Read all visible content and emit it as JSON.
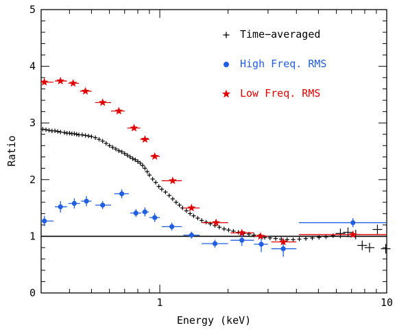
{
  "chart_data": {
    "type": "scatter",
    "xlabel": "Energy (keV)",
    "ylabel": "Ratio",
    "xscale": "log",
    "xlim": [
      0.3,
      10
    ],
    "ylim": [
      0,
      5
    ],
    "xtick_labels": [
      {
        "v": 1,
        "t": "1"
      },
      {
        "v": 10,
        "t": "10"
      }
    ],
    "ytick_labels": [
      {
        "v": 0,
        "t": "0"
      },
      {
        "v": 1,
        "t": "1"
      },
      {
        "v": 2,
        "t": "2"
      },
      {
        "v": 3,
        "t": "3"
      },
      {
        "v": 4,
        "t": "4"
      },
      {
        "v": 5,
        "t": "5"
      }
    ],
    "reference_line": 1.0,
    "legend_position": "top-right",
    "series": [
      {
        "name": "Time−averaged",
        "marker": "plus",
        "color": "#000000",
        "points": [
          [
            0.305,
            2.89
          ],
          [
            0.315,
            2.88
          ],
          [
            0.325,
            2.87
          ],
          [
            0.335,
            2.86
          ],
          [
            0.345,
            2.86
          ],
          [
            0.355,
            2.85
          ],
          [
            0.365,
            2.84
          ],
          [
            0.38,
            2.83
          ],
          [
            0.39,
            2.82
          ],
          [
            0.4,
            2.82
          ],
          [
            0.41,
            2.81
          ],
          [
            0.42,
            2.81
          ],
          [
            0.43,
            2.8
          ],
          [
            0.44,
            2.79
          ],
          [
            0.455,
            2.79
          ],
          [
            0.47,
            2.78
          ],
          [
            0.485,
            2.77
          ],
          [
            0.5,
            2.76
          ],
          [
            0.52,
            2.74
          ],
          [
            0.54,
            2.71
          ],
          [
            0.56,
            2.68
          ],
          [
            0.58,
            2.64
          ],
          [
            0.6,
            2.6
          ],
          [
            0.62,
            2.57
          ],
          [
            0.64,
            2.54
          ],
          [
            0.66,
            2.51
          ],
          [
            0.68,
            2.49
          ],
          [
            0.7,
            2.46
          ],
          [
            0.72,
            2.43
          ],
          [
            0.74,
            2.4
          ],
          [
            0.76,
            2.37
          ],
          [
            0.78,
            2.35
          ],
          [
            0.8,
            2.32
          ],
          [
            0.82,
            2.29
          ],
          [
            0.84,
            2.25
          ],
          [
            0.86,
            2.2
          ],
          [
            0.88,
            2.14
          ],
          [
            0.9,
            2.08
          ],
          [
            0.93,
            2.01
          ],
          [
            0.96,
            1.95
          ],
          [
            0.99,
            1.88
          ],
          [
            1.02,
            1.83
          ],
          [
            1.06,
            1.78
          ],
          [
            1.1,
            1.72
          ],
          [
            1.14,
            1.66
          ],
          [
            1.18,
            1.6
          ],
          [
            1.22,
            1.55
          ],
          [
            1.26,
            1.5
          ],
          [
            1.31,
            1.45
          ],
          [
            1.36,
            1.4
          ],
          [
            1.41,
            1.36
          ],
          [
            1.47,
            1.32
          ],
          [
            1.53,
            1.28
          ],
          [
            1.6,
            1.25
          ],
          [
            1.67,
            1.22
          ],
          [
            1.75,
            1.19
          ],
          [
            1.83,
            1.16
          ],
          [
            1.92,
            1.13
          ],
          [
            2.01,
            1.11
          ],
          [
            2.11,
            1.09
          ],
          [
            2.22,
            1.07
          ],
          [
            2.34,
            1.05
          ],
          [
            2.47,
            1.04
          ],
          [
            2.6,
            1.02
          ],
          [
            2.74,
            1.0
          ],
          [
            2.9,
            0.98
          ],
          [
            3.06,
            0.97
          ],
          [
            3.24,
            0.96
          ],
          [
            3.43,
            0.95
          ],
          [
            3.64,
            0.94
          ],
          [
            3.87,
            0.94
          ],
          [
            4.12,
            0.95
          ],
          [
            4.4,
            0.96
          ],
          [
            4.7,
            0.97
          ],
          [
            5.03,
            0.98
          ],
          [
            5.4,
            0.99
          ],
          [
            5.8,
            1.01
          ],
          [
            6.25,
            1.05
          ],
          [
            6.75,
            1.07
          ],
          [
            7.3,
            1.03
          ],
          [
            7.8,
            0.84
          ],
          [
            8.4,
            0.8
          ],
          [
            9.1,
            1.12
          ],
          [
            9.9,
            0.78
          ]
        ]
      },
      {
        "name": "High Freq. RMS",
        "marker": "circle",
        "color": "#1f5fe0",
        "points": [
          {
            "x": 0.31,
            "y": 1.27,
            "xlo": 0.3,
            "xhi": 0.34,
            "yerr": 0.09
          },
          {
            "x": 0.365,
            "y": 1.52,
            "xlo": 0.345,
            "xhi": 0.39,
            "yerr": 0.1
          },
          {
            "x": 0.42,
            "y": 1.58,
            "xlo": 0.395,
            "xhi": 0.445,
            "yerr": 0.09
          },
          {
            "x": 0.475,
            "y": 1.62,
            "xlo": 0.45,
            "xhi": 0.5,
            "yerr": 0.09
          },
          {
            "x": 0.56,
            "y": 1.55,
            "xlo": 0.52,
            "xhi": 0.61,
            "yerr": 0.07
          },
          {
            "x": 0.68,
            "y": 1.75,
            "xlo": 0.63,
            "xhi": 0.73,
            "yerr": 0.08
          },
          {
            "x": 0.785,
            "y": 1.41,
            "xlo": 0.74,
            "xhi": 0.83,
            "yerr": 0.07
          },
          {
            "x": 0.86,
            "y": 1.43,
            "xlo": 0.835,
            "xhi": 0.895,
            "yerr": 0.08
          },
          {
            "x": 0.95,
            "y": 1.33,
            "xlo": 0.9,
            "xhi": 1.0,
            "yerr": 0.08
          },
          {
            "x": 1.13,
            "y": 1.17,
            "xlo": 1.02,
            "xhi": 1.25,
            "yerr": 0.07
          },
          {
            "x": 1.38,
            "y": 1.02,
            "xlo": 1.27,
            "xhi": 1.5,
            "yerr": 0.06
          },
          {
            "x": 1.75,
            "y": 0.87,
            "xlo": 1.53,
            "xhi": 2.0,
            "yerr": 0.07
          },
          {
            "x": 2.3,
            "y": 0.93,
            "xlo": 2.05,
            "xhi": 2.6,
            "yerr": 0.1
          },
          {
            "x": 2.8,
            "y": 0.86,
            "xlo": 2.6,
            "xhi": 3.0,
            "yerr": 0.14
          },
          {
            "x": 3.5,
            "y": 0.78,
            "xlo": 3.1,
            "xhi": 4.0,
            "yerr": 0.14
          },
          {
            "x": 7.1,
            "y": 1.24,
            "xlo": 4.1,
            "xhi": 10.0,
            "yerr": 0.08
          }
        ]
      },
      {
        "name": "Low Freq. RMS",
        "marker": "star",
        "color": "#e00000",
        "points": [
          {
            "x": 0.31,
            "y": 3.72,
            "xlo": 0.3,
            "xhi": 0.34,
            "yerr": 0.03
          },
          {
            "x": 0.365,
            "y": 3.74,
            "xlo": 0.345,
            "xhi": 0.39,
            "yerr": 0.03
          },
          {
            "x": 0.415,
            "y": 3.7,
            "xlo": 0.395,
            "xhi": 0.44,
            "yerr": 0.03
          },
          {
            "x": 0.47,
            "y": 3.56,
            "xlo": 0.445,
            "xhi": 0.5,
            "yerr": 0.03
          },
          {
            "x": 0.56,
            "y": 3.36,
            "xlo": 0.52,
            "xhi": 0.61,
            "yerr": 0.03
          },
          {
            "x": 0.66,
            "y": 3.21,
            "xlo": 0.61,
            "xhi": 0.7,
            "yerr": 0.03
          },
          {
            "x": 0.77,
            "y": 2.91,
            "xlo": 0.72,
            "xhi": 0.82,
            "yerr": 0.03
          },
          {
            "x": 0.86,
            "y": 2.71,
            "xlo": 0.82,
            "xhi": 0.9,
            "yerr": 0.03
          },
          {
            "x": 0.95,
            "y": 2.41,
            "xlo": 0.91,
            "xhi": 1.0,
            "yerr": 0.03
          },
          {
            "x": 1.14,
            "y": 1.98,
            "xlo": 1.02,
            "xhi": 1.25,
            "yerr": 0.03
          },
          {
            "x": 1.38,
            "y": 1.5,
            "xlo": 1.27,
            "xhi": 1.5,
            "yerr": 0.03
          },
          {
            "x": 1.77,
            "y": 1.24,
            "xlo": 1.53,
            "xhi": 2.0,
            "yerr": 0.03
          },
          {
            "x": 2.3,
            "y": 1.06,
            "xlo": 2.05,
            "xhi": 2.6,
            "yerr": 0.03
          },
          {
            "x": 2.78,
            "y": 1.0,
            "xlo": 2.6,
            "xhi": 3.0,
            "yerr": 0.03
          },
          {
            "x": 3.5,
            "y": 0.9,
            "xlo": 3.1,
            "xhi": 4.0,
            "yerr": 0.03
          },
          {
            "x": 7.1,
            "y": 1.03,
            "xlo": 4.1,
            "xhi": 10.0,
            "yerr": 0.03
          }
        ]
      }
    ]
  }
}
